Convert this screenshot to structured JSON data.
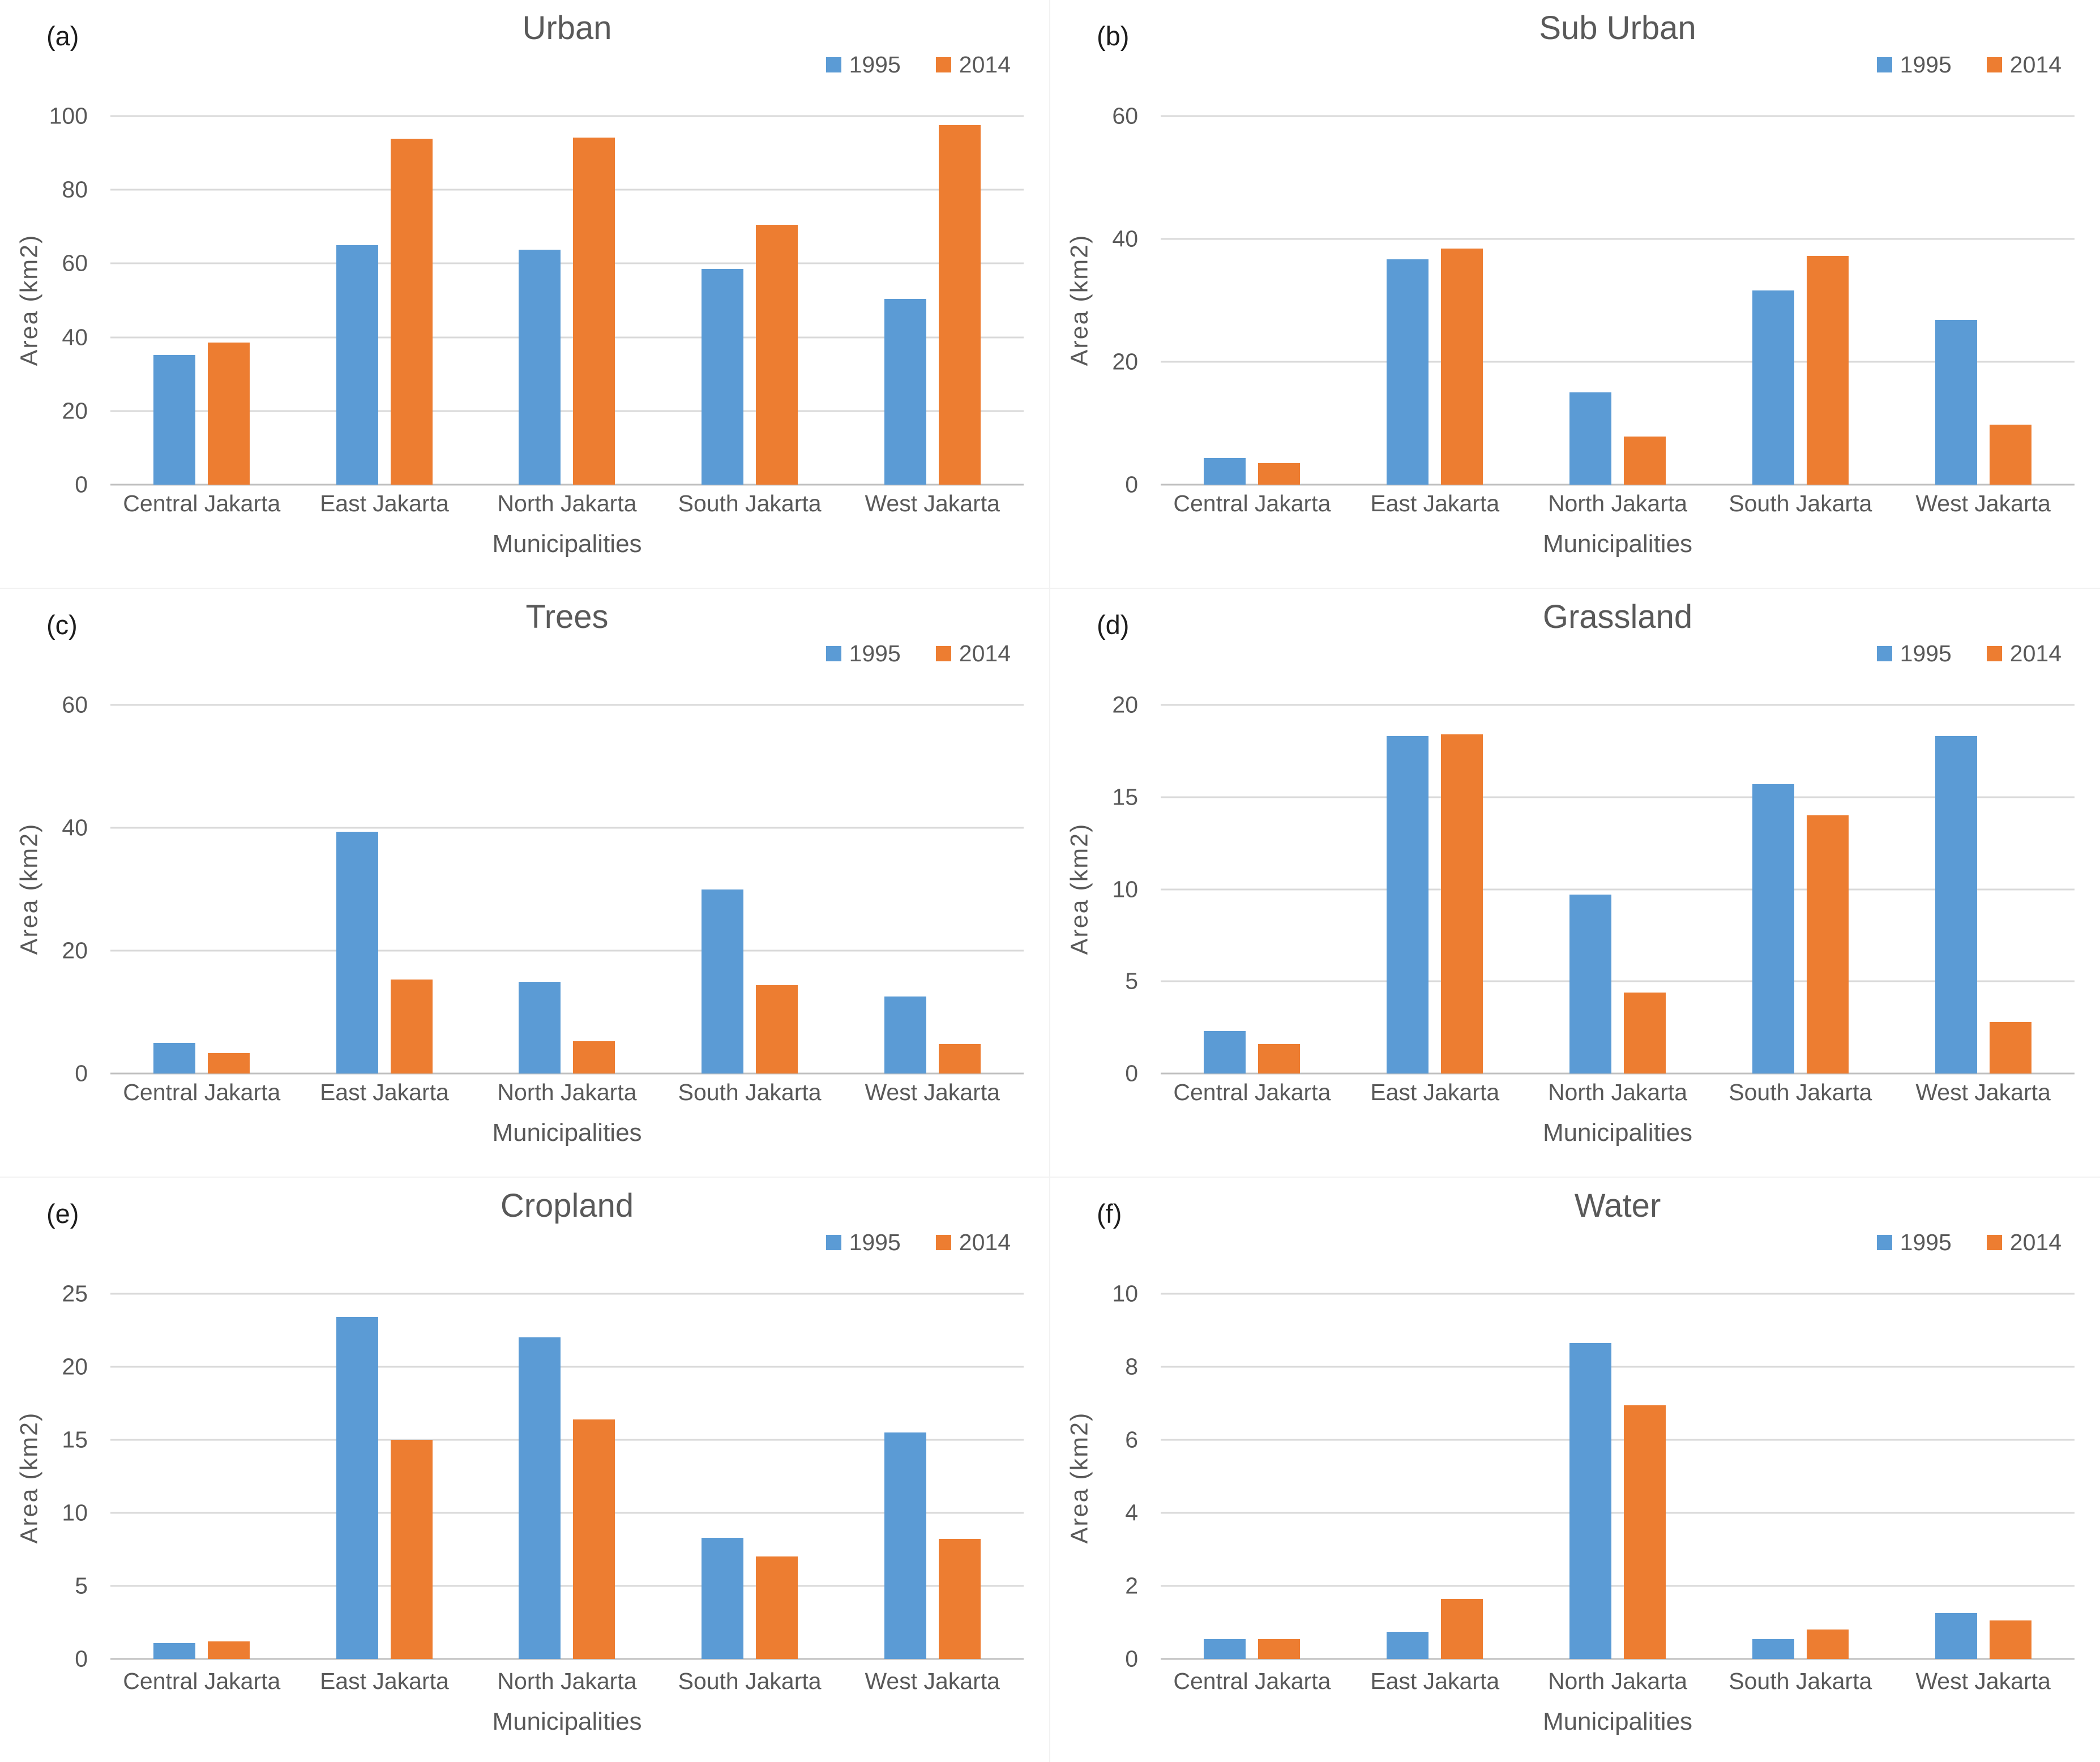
{
  "figure": {
    "background": "#ffffff",
    "text_color": "#595959",
    "gridline_color": "#d9d9d9",
    "axisline_color": "#c0c0c0"
  },
  "legend": {
    "items": [
      {
        "label": "1995",
        "color": "#5B9BD5"
      },
      {
        "label": "2014",
        "color": "#ED7D31"
      }
    ]
  },
  "chart_data": [
    {
      "type": "bar",
      "panel_letter": "(a)",
      "title": "Urban",
      "xlabel": "Municipalities",
      "ylabel": "Area (km2)",
      "ylim": [
        0,
        100
      ],
      "yticks": [
        0,
        20,
        40,
        60,
        80,
        100
      ],
      "grid": true,
      "legend_position": "top-right",
      "categories": [
        "Central Jakarta",
        "East Jakarta",
        "North Jakarta",
        "South Jakarta",
        "West Jakarta"
      ],
      "series": [
        {
          "name": "1995",
          "values": [
            35.2,
            65,
            63.8,
            58.6,
            50.4
          ]
        },
        {
          "name": "2014",
          "values": [
            38.5,
            93.8,
            94.2,
            70.5,
            97.6
          ]
        }
      ]
    },
    {
      "type": "bar",
      "panel_letter": "(b)",
      "title": "Sub Urban",
      "xlabel": "Municipalities",
      "ylabel": "Area (km2)",
      "ylim": [
        0,
        60
      ],
      "yticks": [
        0,
        20,
        40,
        60
      ],
      "grid": true,
      "legend_position": "top-right",
      "categories": [
        "Central Jakarta",
        "East Jakarta",
        "North Jakarta",
        "South Jakarta",
        "West Jakarta"
      ],
      "series": [
        {
          "name": "1995",
          "values": [
            4.3,
            36.7,
            15,
            31.6,
            26.8
          ]
        },
        {
          "name": "2014",
          "values": [
            3.5,
            38.4,
            7.8,
            37.2,
            9.8
          ]
        }
      ]
    },
    {
      "type": "bar",
      "panel_letter": "(c)",
      "title": "Trees",
      "xlabel": "Municipalities",
      "ylabel": "Area (km2)",
      "ylim": [
        0,
        60
      ],
      "yticks": [
        0,
        20,
        40,
        60
      ],
      "grid": true,
      "legend_position": "top-right",
      "categories": [
        "Central Jakarta",
        "East Jakarta",
        "North Jakarta",
        "South Jakarta",
        "West Jakarta"
      ],
      "series": [
        {
          "name": "1995",
          "values": [
            5,
            39.4,
            14.9,
            30,
            12.5
          ]
        },
        {
          "name": "2014",
          "values": [
            3.3,
            15.3,
            5.3,
            14.4,
            4.8
          ]
        }
      ]
    },
    {
      "type": "bar",
      "panel_letter": "(d)",
      "title": "Grassland",
      "xlabel": "Municipalities",
      "ylabel": "Area (km2)",
      "ylim": [
        0,
        20
      ],
      "yticks": [
        0,
        5,
        10,
        15,
        20
      ],
      "grid": true,
      "legend_position": "top-right",
      "categories": [
        "Central Jakarta",
        "East Jakarta",
        "North Jakarta",
        "South Jakarta",
        "West Jakarta"
      ],
      "series": [
        {
          "name": "1995",
          "values": [
            2.3,
            18.3,
            9.7,
            15.7,
            18.3
          ]
        },
        {
          "name": "2014",
          "values": [
            1.6,
            18.4,
            4.4,
            14,
            2.8
          ]
        }
      ]
    },
    {
      "type": "bar",
      "panel_letter": "(e)",
      "title": "Cropland",
      "xlabel": "Municipalities",
      "ylabel": "Area (km2)",
      "ylim": [
        0,
        25
      ],
      "yticks": [
        0,
        5,
        10,
        15,
        20,
        25
      ],
      "grid": true,
      "legend_position": "top-right",
      "categories": [
        "Central Jakarta",
        "East Jakarta",
        "North Jakarta",
        "South Jakarta",
        "West Jakarta"
      ],
      "series": [
        {
          "name": "1995",
          "values": [
            1.1,
            23.4,
            22,
            8.3,
            15.5
          ]
        },
        {
          "name": "2014",
          "values": [
            1.2,
            15,
            16.4,
            7,
            8.2
          ]
        }
      ]
    },
    {
      "type": "bar",
      "panel_letter": "(f)",
      "title": "Water",
      "xlabel": "Municipalities",
      "ylabel": "Area (km2)",
      "ylim": [
        0,
        10
      ],
      "yticks": [
        0,
        2,
        4,
        6,
        8,
        10
      ],
      "grid": true,
      "legend_position": "top-right",
      "categories": [
        "Central Jakarta",
        "East Jakarta",
        "North Jakarta",
        "South Jakarta",
        "West Jakarta"
      ],
      "series": [
        {
          "name": "1995",
          "values": [
            0.55,
            0.75,
            8.65,
            0.55,
            1.25
          ]
        },
        {
          "name": "2014",
          "values": [
            0.55,
            1.65,
            6.95,
            0.8,
            1.05
          ]
        }
      ]
    }
  ]
}
